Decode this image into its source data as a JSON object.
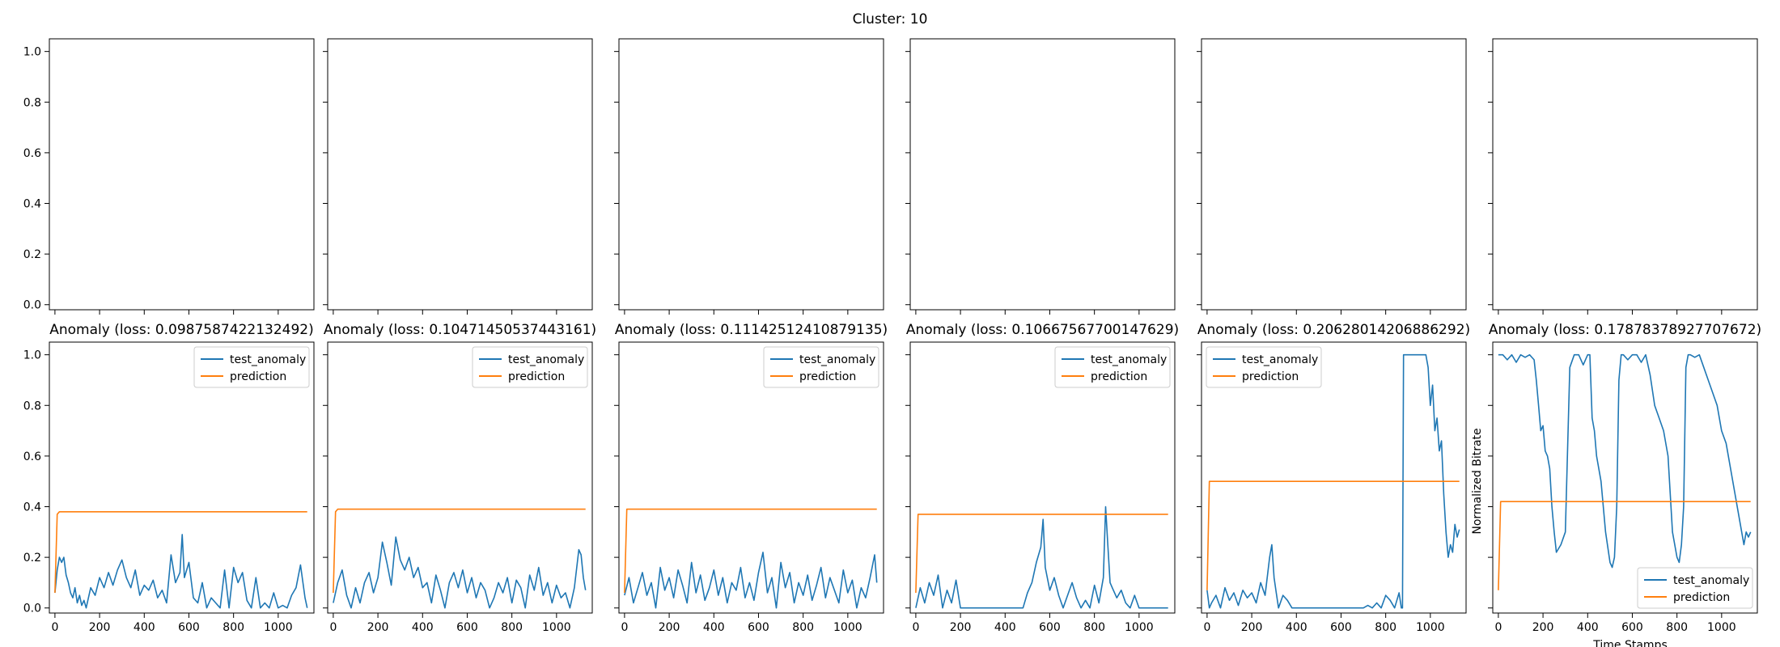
{
  "figure": {
    "suptitle": "Cluster: 10",
    "colors": {
      "test_anomaly": "#1f77b4",
      "prediction": "#ff7f0e",
      "axes": "#000000",
      "background": "#ffffff"
    }
  },
  "chart_data": {
    "type": "line",
    "layout": "2x6 grid",
    "grid": false,
    "shared_y_ticks": [
      "0.0",
      "0.2",
      "0.4",
      "0.6",
      "0.8",
      "1.0"
    ],
    "shared_x_ticks": [
      "0",
      "200",
      "400",
      "600",
      "800",
      "1000"
    ],
    "xlim": [
      -25,
      1160
    ],
    "ylim": [
      -0.02,
      1.05
    ],
    "top_row": [
      {
        "panel": 1,
        "empty": true
      },
      {
        "panel": 2,
        "empty": true
      },
      {
        "panel": 3,
        "empty": true
      },
      {
        "panel": 4,
        "empty": true
      },
      {
        "panel": 5,
        "empty": true
      },
      {
        "panel": 6,
        "empty": true
      }
    ],
    "bottom_row": [
      {
        "panel": 1,
        "title": "Anomaly (loss: 0.0987587422132492)",
        "legend": "upper right",
        "series": [
          {
            "name": "test_anomaly",
            "x": [
              0,
              10,
              20,
              30,
              40,
              50,
              60,
              70,
              80,
              90,
              100,
              110,
              120,
              130,
              140,
              160,
              180,
              200,
              220,
              240,
              260,
              280,
              300,
              320,
              340,
              360,
              380,
              400,
              420,
              440,
              460,
              480,
              500,
              520,
              540,
              560,
              570,
              580,
              600,
              620,
              640,
              660,
              680,
              700,
              720,
              740,
              760,
              780,
              800,
              820,
              840,
              860,
              880,
              900,
              920,
              940,
              960,
              980,
              1000,
              1020,
              1040,
              1060,
              1080,
              1100,
              1120,
              1130
            ],
            "y": [
              0.06,
              0.15,
              0.2,
              0.18,
              0.2,
              0.13,
              0.1,
              0.06,
              0.04,
              0.08,
              0.02,
              0.05,
              0.01,
              0.03,
              0.0,
              0.08,
              0.05,
              0.12,
              0.08,
              0.14,
              0.09,
              0.15,
              0.19,
              0.12,
              0.08,
              0.15,
              0.05,
              0.09,
              0.07,
              0.11,
              0.04,
              0.07,
              0.02,
              0.21,
              0.1,
              0.14,
              0.29,
              0.12,
              0.18,
              0.04,
              0.02,
              0.1,
              0.0,
              0.04,
              0.02,
              0.0,
              0.15,
              0.0,
              0.16,
              0.1,
              0.14,
              0.03,
              0.0,
              0.12,
              0.0,
              0.02,
              0.0,
              0.06,
              0.0,
              0.01,
              0.0,
              0.05,
              0.08,
              0.17,
              0.04,
              0.0
            ]
          },
          {
            "name": "prediction",
            "x": [
              0,
              10,
              20,
              1130
            ],
            "y": [
              0.06,
              0.37,
              0.38,
              0.38
            ]
          }
        ]
      },
      {
        "panel": 2,
        "title": "Anomaly (loss: 0.10471450537443161)",
        "legend": "upper right",
        "series": [
          {
            "name": "test_anomaly",
            "x": [
              0,
              20,
              40,
              60,
              80,
              100,
              120,
              140,
              160,
              180,
              200,
              220,
              240,
              260,
              280,
              300,
              320,
              340,
              360,
              380,
              400,
              420,
              440,
              460,
              480,
              500,
              520,
              540,
              560,
              580,
              600,
              620,
              640,
              660,
              680,
              700,
              720,
              740,
              760,
              780,
              800,
              820,
              840,
              860,
              880,
              900,
              920,
              940,
              960,
              980,
              1000,
              1020,
              1040,
              1060,
              1080,
              1100,
              1110,
              1120,
              1130
            ],
            "y": [
              0.02,
              0.1,
              0.15,
              0.05,
              0.0,
              0.08,
              0.02,
              0.1,
              0.14,
              0.06,
              0.12,
              0.26,
              0.18,
              0.09,
              0.28,
              0.19,
              0.15,
              0.2,
              0.12,
              0.16,
              0.08,
              0.1,
              0.02,
              0.13,
              0.07,
              0.0,
              0.1,
              0.14,
              0.08,
              0.15,
              0.06,
              0.12,
              0.04,
              0.1,
              0.07,
              0.0,
              0.04,
              0.1,
              0.06,
              0.12,
              0.02,
              0.11,
              0.08,
              0.0,
              0.13,
              0.07,
              0.16,
              0.05,
              0.1,
              0.02,
              0.09,
              0.04,
              0.06,
              0.0,
              0.08,
              0.23,
              0.21,
              0.12,
              0.07
            ]
          },
          {
            "name": "prediction",
            "x": [
              0,
              10,
              20,
              1130
            ],
            "y": [
              0.06,
              0.38,
              0.39,
              0.39
            ]
          }
        ]
      },
      {
        "panel": 3,
        "title": "Anomaly (loss: 0.11142512410879135)",
        "legend": "upper right",
        "series": [
          {
            "name": "test_anomaly",
            "x": [
              0,
              20,
              40,
              60,
              80,
              100,
              120,
              140,
              160,
              180,
              200,
              220,
              240,
              260,
              280,
              300,
              320,
              340,
              360,
              380,
              400,
              420,
              440,
              460,
              480,
              500,
              520,
              540,
              560,
              580,
              600,
              620,
              640,
              660,
              680,
              700,
              720,
              740,
              760,
              780,
              800,
              820,
              840,
              860,
              880,
              900,
              920,
              940,
              960,
              980,
              1000,
              1020,
              1040,
              1060,
              1080,
              1100,
              1120,
              1130
            ],
            "y": [
              0.05,
              0.12,
              0.02,
              0.08,
              0.14,
              0.05,
              0.1,
              0.0,
              0.16,
              0.07,
              0.12,
              0.04,
              0.15,
              0.09,
              0.02,
              0.18,
              0.06,
              0.13,
              0.03,
              0.08,
              0.15,
              0.05,
              0.12,
              0.02,
              0.1,
              0.07,
              0.16,
              0.04,
              0.1,
              0.03,
              0.14,
              0.22,
              0.06,
              0.12,
              0.0,
              0.18,
              0.08,
              0.14,
              0.02,
              0.1,
              0.05,
              0.13,
              0.03,
              0.09,
              0.16,
              0.04,
              0.12,
              0.07,
              0.02,
              0.15,
              0.06,
              0.11,
              0.0,
              0.08,
              0.04,
              0.12,
              0.21,
              0.1
            ]
          },
          {
            "name": "prediction",
            "x": [
              0,
              10,
              20,
              1130
            ],
            "y": [
              0.06,
              0.39,
              0.39,
              0.39
            ]
          }
        ]
      },
      {
        "panel": 4,
        "title": "Anomaly (loss: 0.10667567700147629)",
        "legend": "upper right",
        "series": [
          {
            "name": "test_anomaly",
            "x": [
              0,
              20,
              40,
              60,
              80,
              100,
              120,
              140,
              160,
              180,
              200,
              220,
              240,
              260,
              280,
              300,
              320,
              340,
              360,
              380,
              400,
              420,
              440,
              460,
              480,
              500,
              520,
              540,
              560,
              570,
              580,
              600,
              620,
              640,
              660,
              680,
              700,
              720,
              740,
              760,
              780,
              800,
              820,
              840,
              850,
              860,
              870,
              880,
              900,
              920,
              940,
              960,
              980,
              1000,
              1020,
              1040,
              1060,
              1080,
              1100,
              1130
            ],
            "y": [
              0.0,
              0.08,
              0.02,
              0.1,
              0.05,
              0.13,
              0.0,
              0.07,
              0.02,
              0.11,
              0.0,
              0.0,
              0.0,
              0.0,
              0.0,
              0.0,
              0.0,
              0.0,
              0.0,
              0.0,
              0.0,
              0.0,
              0.0,
              0.0,
              0.0,
              0.06,
              0.1,
              0.18,
              0.24,
              0.35,
              0.16,
              0.07,
              0.12,
              0.05,
              0.0,
              0.05,
              0.1,
              0.04,
              0.0,
              0.03,
              0.0,
              0.09,
              0.02,
              0.12,
              0.4,
              0.25,
              0.1,
              0.08,
              0.04,
              0.07,
              0.02,
              0.0,
              0.05,
              0.0,
              0.0,
              0.0,
              0.0,
              0.0,
              0.0,
              0.0
            ]
          },
          {
            "name": "prediction",
            "x": [
              0,
              10,
              20,
              1130
            ],
            "y": [
              0.06,
              0.37,
              0.37,
              0.37
            ]
          }
        ]
      },
      {
        "panel": 5,
        "title": "Anomaly (loss: 0.20628014206886292)",
        "legend": "upper left",
        "series": [
          {
            "name": "test_anomaly",
            "x": [
              0,
              10,
              20,
              40,
              60,
              80,
              100,
              120,
              140,
              160,
              180,
              200,
              220,
              240,
              260,
              280,
              290,
              300,
              310,
              320,
              340,
              360,
              380,
              400,
              420,
              440,
              460,
              480,
              500,
              520,
              540,
              560,
              580,
              600,
              620,
              640,
              660,
              680,
              700,
              720,
              740,
              760,
              780,
              800,
              820,
              840,
              860,
              870,
              875,
              880,
              900,
              920,
              940,
              960,
              980,
              990,
              1000,
              1010,
              1020,
              1030,
              1040,
              1050,
              1060,
              1070,
              1080,
              1090,
              1100,
              1110,
              1120,
              1130
            ],
            "y": [
              0.07,
              0.0,
              0.02,
              0.05,
              0.0,
              0.08,
              0.03,
              0.06,
              0.01,
              0.07,
              0.04,
              0.06,
              0.02,
              0.1,
              0.05,
              0.2,
              0.25,
              0.12,
              0.06,
              0.0,
              0.05,
              0.03,
              0.0,
              0.0,
              0.0,
              0.0,
              0.0,
              0.0,
              0.0,
              0.0,
              0.0,
              0.0,
              0.0,
              0.0,
              0.0,
              0.0,
              0.0,
              0.0,
              0.0,
              0.01,
              0.0,
              0.02,
              0.0,
              0.05,
              0.03,
              0.0,
              0.06,
              0.0,
              0.0,
              1.0,
              1.0,
              1.0,
              1.0,
              1.0,
              1.0,
              0.95,
              0.8,
              0.88,
              0.7,
              0.75,
              0.62,
              0.66,
              0.45,
              0.3,
              0.2,
              0.25,
              0.22,
              0.33,
              0.28,
              0.31
            ]
          },
          {
            "name": "prediction",
            "x": [
              0,
              10,
              20,
              1130
            ],
            "y": [
              0.07,
              0.5,
              0.5,
              0.5
            ]
          }
        ]
      },
      {
        "panel": 6,
        "title": "Anomaly (loss: 0.17878378927707672)",
        "legend": "lower right",
        "series": [
          {
            "name": "test_anomaly",
            "x": [
              0,
              20,
              40,
              60,
              80,
              100,
              120,
              140,
              160,
              170,
              180,
              190,
              200,
              210,
              220,
              230,
              240,
              250,
              260,
              280,
              300,
              320,
              340,
              360,
              380,
              400,
              410,
              420,
              430,
              440,
              460,
              480,
              500,
              510,
              520,
              530,
              540,
              550,
              560,
              580,
              600,
              620,
              640,
              660,
              680,
              700,
              720,
              740,
              760,
              780,
              800,
              810,
              820,
              830,
              840,
              850,
              860,
              880,
              900,
              920,
              940,
              960,
              980,
              1000,
              1020,
              1040,
              1060,
              1080,
              1100,
              1110,
              1120,
              1130
            ],
            "y": [
              1.0,
              1.0,
              0.98,
              1.0,
              0.97,
              1.0,
              0.99,
              1.0,
              0.98,
              0.9,
              0.8,
              0.7,
              0.72,
              0.62,
              0.6,
              0.55,
              0.4,
              0.3,
              0.22,
              0.25,
              0.3,
              0.95,
              1.0,
              1.0,
              0.96,
              1.0,
              1.0,
              0.75,
              0.7,
              0.6,
              0.5,
              0.3,
              0.18,
              0.16,
              0.2,
              0.4,
              0.9,
              1.0,
              1.0,
              0.98,
              1.0,
              1.0,
              0.97,
              1.0,
              0.92,
              0.8,
              0.75,
              0.7,
              0.6,
              0.3,
              0.2,
              0.18,
              0.25,
              0.4,
              0.95,
              1.0,
              1.0,
              0.99,
              1.0,
              0.95,
              0.9,
              0.85,
              0.8,
              0.7,
              0.65,
              0.55,
              0.45,
              0.35,
              0.25,
              0.3,
              0.28,
              0.3
            ]
          },
          {
            "name": "prediction",
            "x": [
              0,
              10,
              20,
              1130
            ],
            "y": [
              0.07,
              0.42,
              0.42,
              0.42
            ]
          }
        ]
      }
    ],
    "ylabel": "Normalized Bitrate",
    "xlabel": "Time Stamps"
  }
}
